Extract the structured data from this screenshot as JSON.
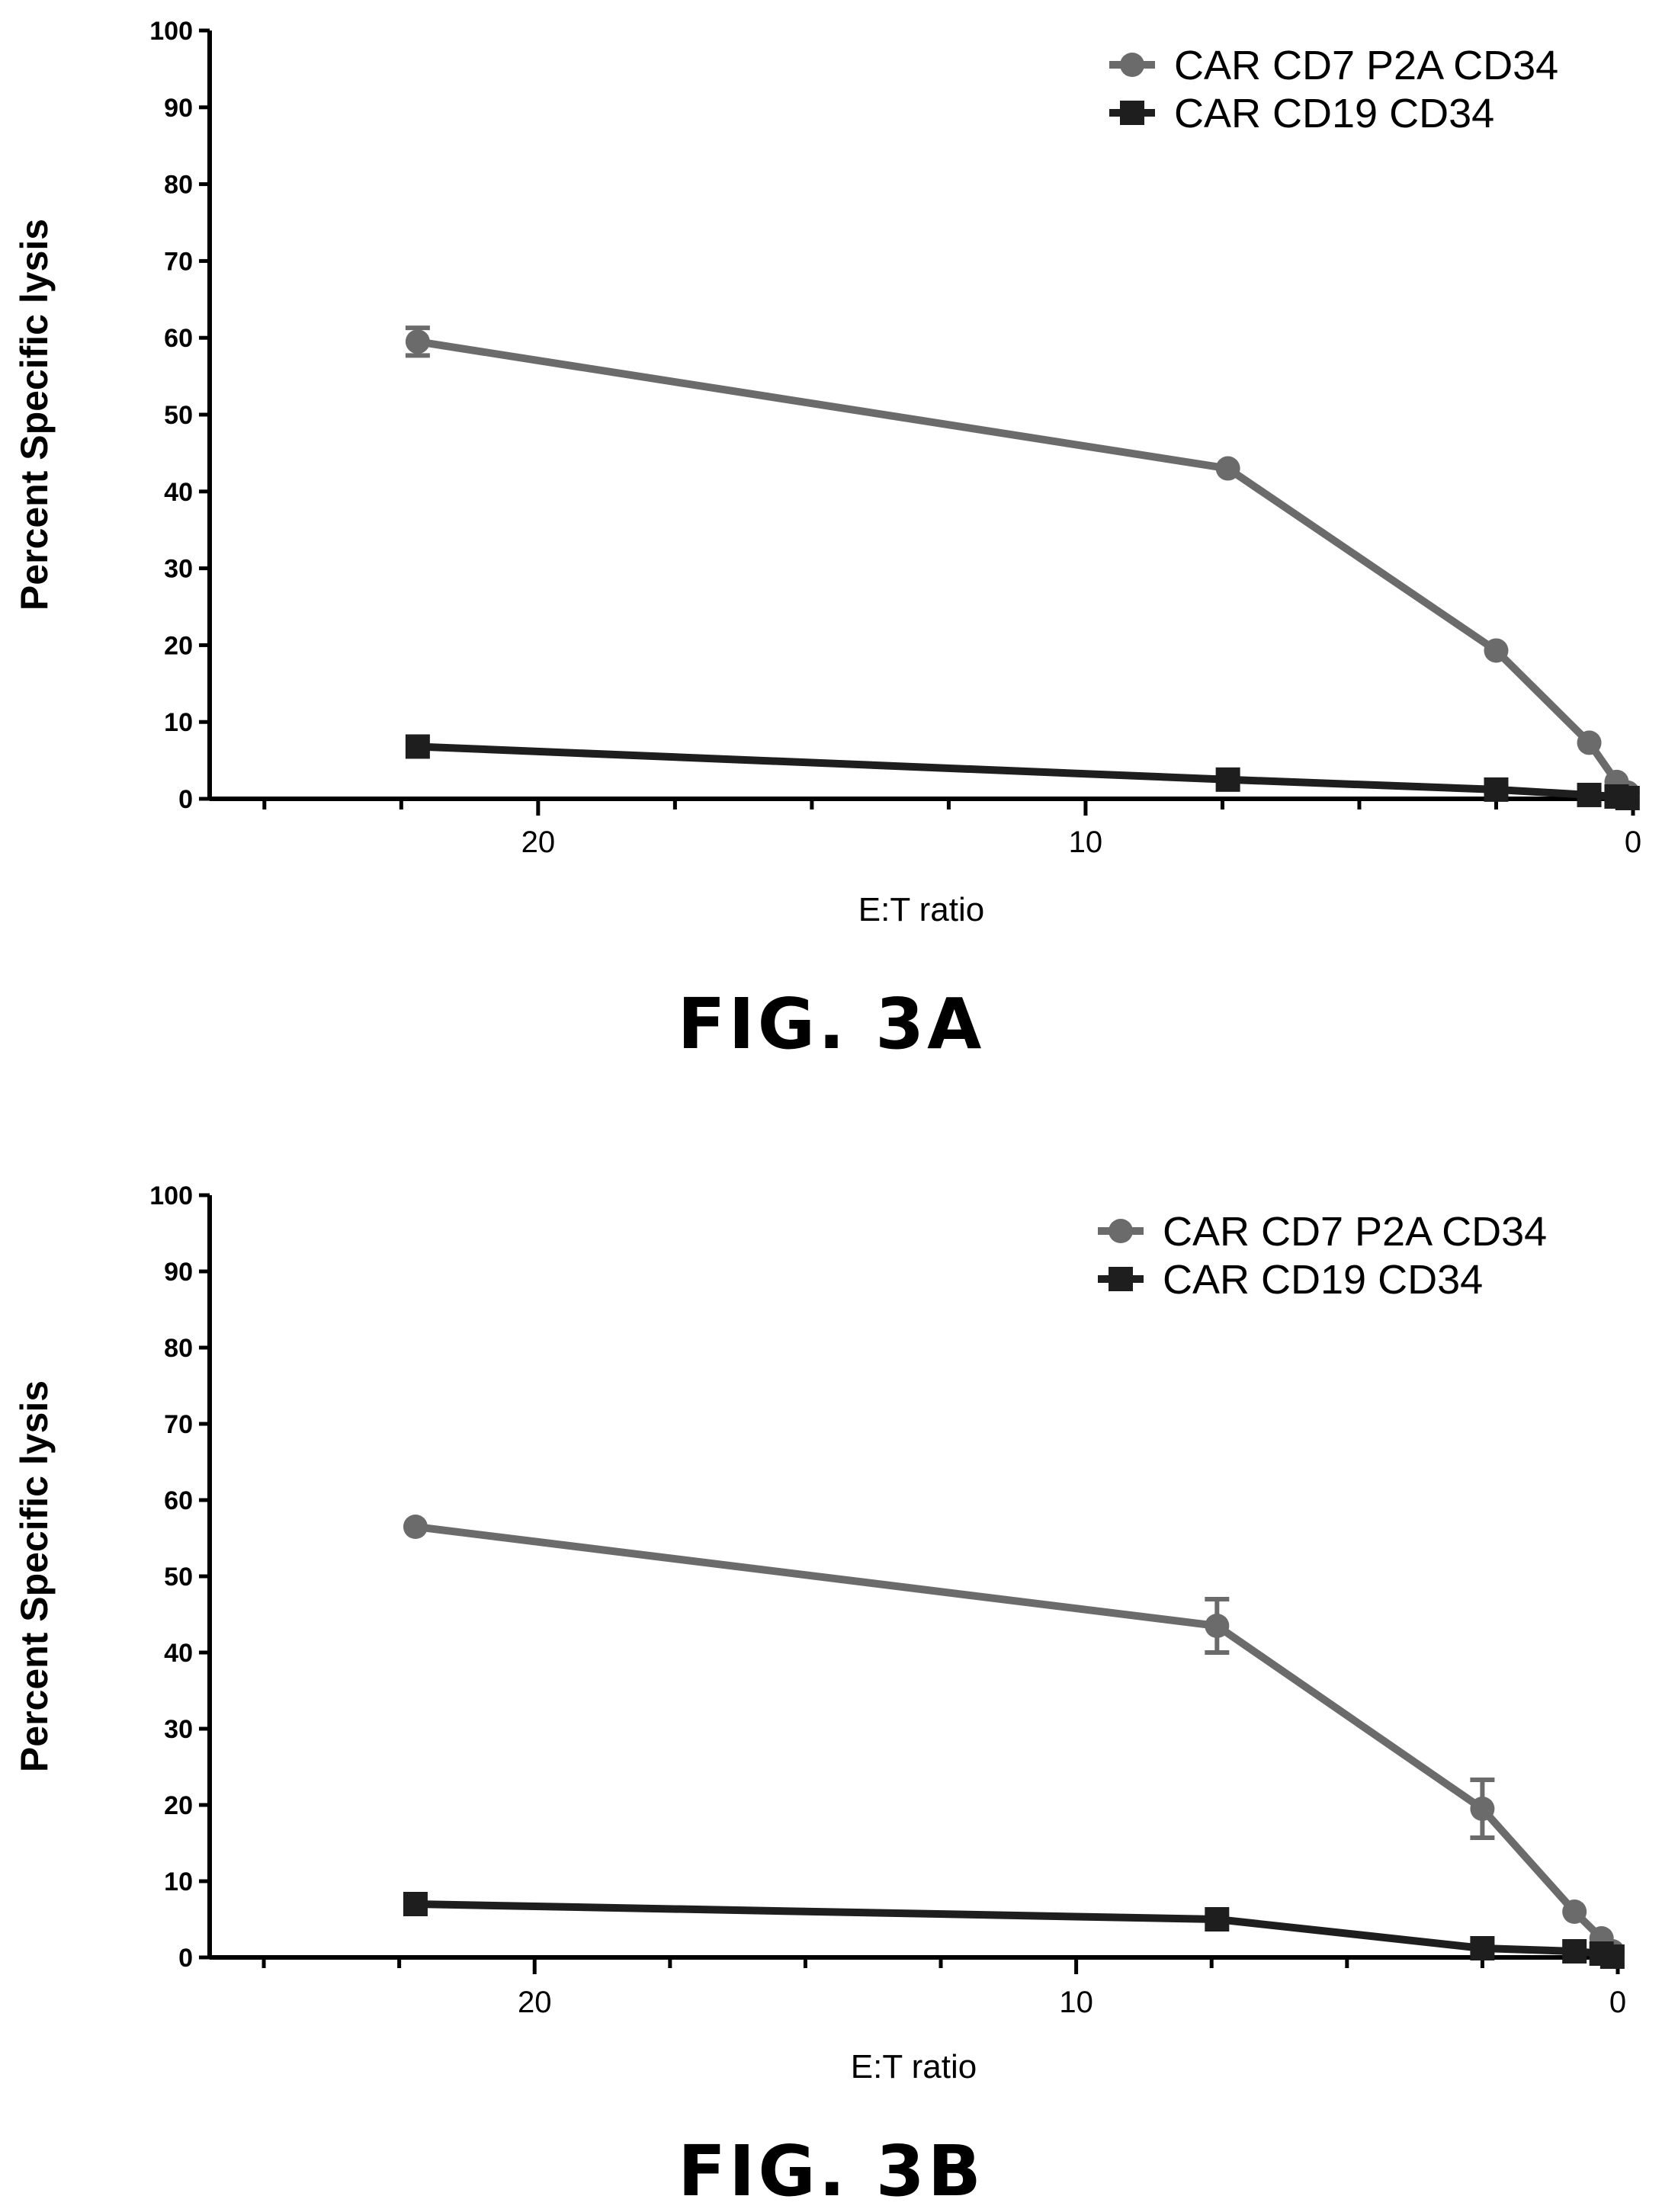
{
  "chart_data": [
    {
      "type": "line",
      "figure_label": "FIG. 3A",
      "xlabel": "E:T ratio",
      "ylabel": "Percent Specific lysis",
      "xlim": [
        26,
        0
      ],
      "ylim": [
        0,
        100
      ],
      "x_ticks": [
        20,
        10,
        0
      ],
      "y_ticks": [
        0,
        10,
        20,
        30,
        40,
        50,
        60,
        70,
        80,
        90,
        100
      ],
      "legend_position": "top-right",
      "series": [
        {
          "name": "CAR CD7 P2A CD34",
          "color": "#6b6b6b",
          "marker": "circle",
          "x": [
            22.2,
            7.4,
            2.5,
            0.8,
            0.3,
            0.1
          ],
          "y": [
            59.5,
            43,
            19.3,
            7.3,
            2.2,
            0.8
          ],
          "error": [
            1.8,
            0,
            0,
            0,
            0,
            0
          ]
        },
        {
          "name": "CAR CD19 CD34",
          "color": "#1e1e1e",
          "marker": "square",
          "x": [
            22.2,
            7.4,
            2.5,
            0.8,
            0.3,
            0.1
          ],
          "y": [
            6.8,
            2.5,
            1.2,
            0.5,
            0.3,
            0.1
          ],
          "error": [
            0,
            0,
            0,
            0,
            0,
            0
          ]
        }
      ]
    },
    {
      "type": "line",
      "figure_label": "FIG. 3B",
      "xlabel": "E:T ratio",
      "ylabel": "Percent Specific lysis",
      "xlim": [
        26,
        0
      ],
      "ylim": [
        0,
        100
      ],
      "x_ticks": [
        20,
        10,
        0
      ],
      "y_ticks": [
        0,
        10,
        20,
        30,
        40,
        50,
        60,
        70,
        80,
        90,
        100
      ],
      "legend_position": "top-right",
      "series": [
        {
          "name": "CAR CD7 P2A CD34",
          "color": "#6b6b6b",
          "marker": "circle",
          "x": [
            22.2,
            7.4,
            2.5,
            0.8,
            0.3,
            0.1
          ],
          "y": [
            56.5,
            43.5,
            19.5,
            6,
            2.5,
            0.8
          ],
          "error": [
            0,
            3.5,
            3.8,
            0,
            0,
            0
          ]
        },
        {
          "name": "CAR CD19 CD34",
          "color": "#1e1e1e",
          "marker": "square",
          "x": [
            22.2,
            7.4,
            2.5,
            0.8,
            0.3,
            0.1
          ],
          "y": [
            7,
            5,
            1.2,
            0.8,
            0.5,
            0.1
          ],
          "error": [
            0,
            0,
            0,
            0,
            0,
            0
          ]
        }
      ]
    }
  ]
}
